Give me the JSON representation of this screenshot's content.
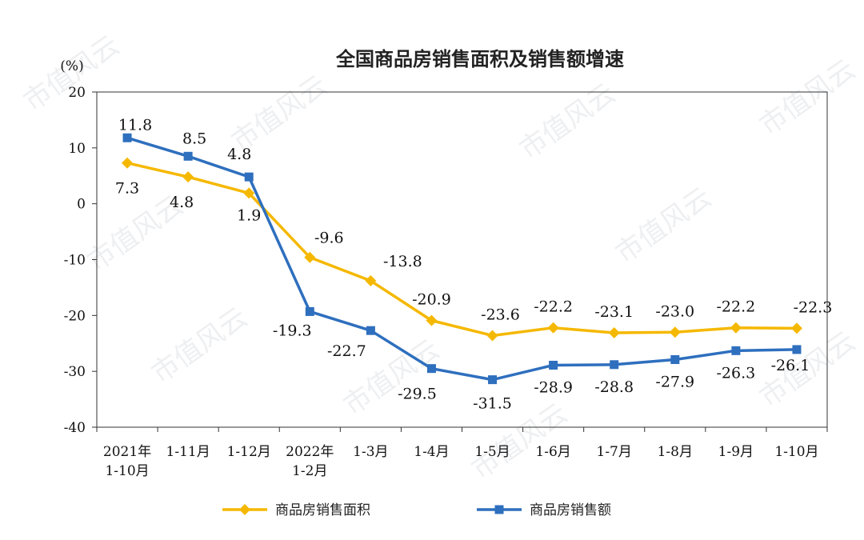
{
  "watermark": "市值风云",
  "chart_data": {
    "type": "line",
    "title": "全国商品房销售面积及销售额增速",
    "unit_label": "(%)",
    "ylim": [
      -40,
      20
    ],
    "yticks": [
      20,
      10,
      0,
      -10,
      -20,
      -30,
      -40
    ],
    "grid": false,
    "legend_position": "bottom",
    "categories": [
      [
        "2021年",
        "1-10月"
      ],
      [
        "1-11月"
      ],
      [
        "1-12月"
      ],
      [
        "2022年",
        "1-2月"
      ],
      [
        "1-3月"
      ],
      [
        "1-4月"
      ],
      [
        "1-5月"
      ],
      [
        "1-6月"
      ],
      [
        "1-7月"
      ],
      [
        "1-8月"
      ],
      [
        "1-9月"
      ],
      [
        "1-10月"
      ]
    ],
    "series": [
      {
        "name": "商品房销售面积",
        "color": "#f5b800",
        "marker": "diamond",
        "values": [
          7.3,
          4.8,
          1.9,
          -9.6,
          -13.8,
          -20.9,
          -23.6,
          -22.2,
          -23.1,
          -23.0,
          -22.2,
          -22.3
        ],
        "labels": [
          "7.3",
          "4.8",
          "1.9",
          "-9.6",
          "-13.8",
          "-20.9",
          "-23.6",
          "-22.2",
          "-23.1",
          "-23.0",
          "-22.2",
          "-22.3"
        ]
      },
      {
        "name": "商品房销售额",
        "color": "#2e6fbe",
        "marker": "square",
        "values": [
          11.8,
          8.5,
          4.8,
          -19.3,
          -22.7,
          -29.5,
          -31.5,
          -28.9,
          -28.8,
          -27.9,
          -26.3,
          -26.1
        ],
        "labels": [
          "11.8",
          "8.5",
          "4.8",
          "-19.3",
          "-22.7",
          "-29.5",
          "-31.5",
          "-28.9",
          "-28.8",
          "-27.9",
          "-26.3",
          "-26.1"
        ]
      }
    ]
  }
}
